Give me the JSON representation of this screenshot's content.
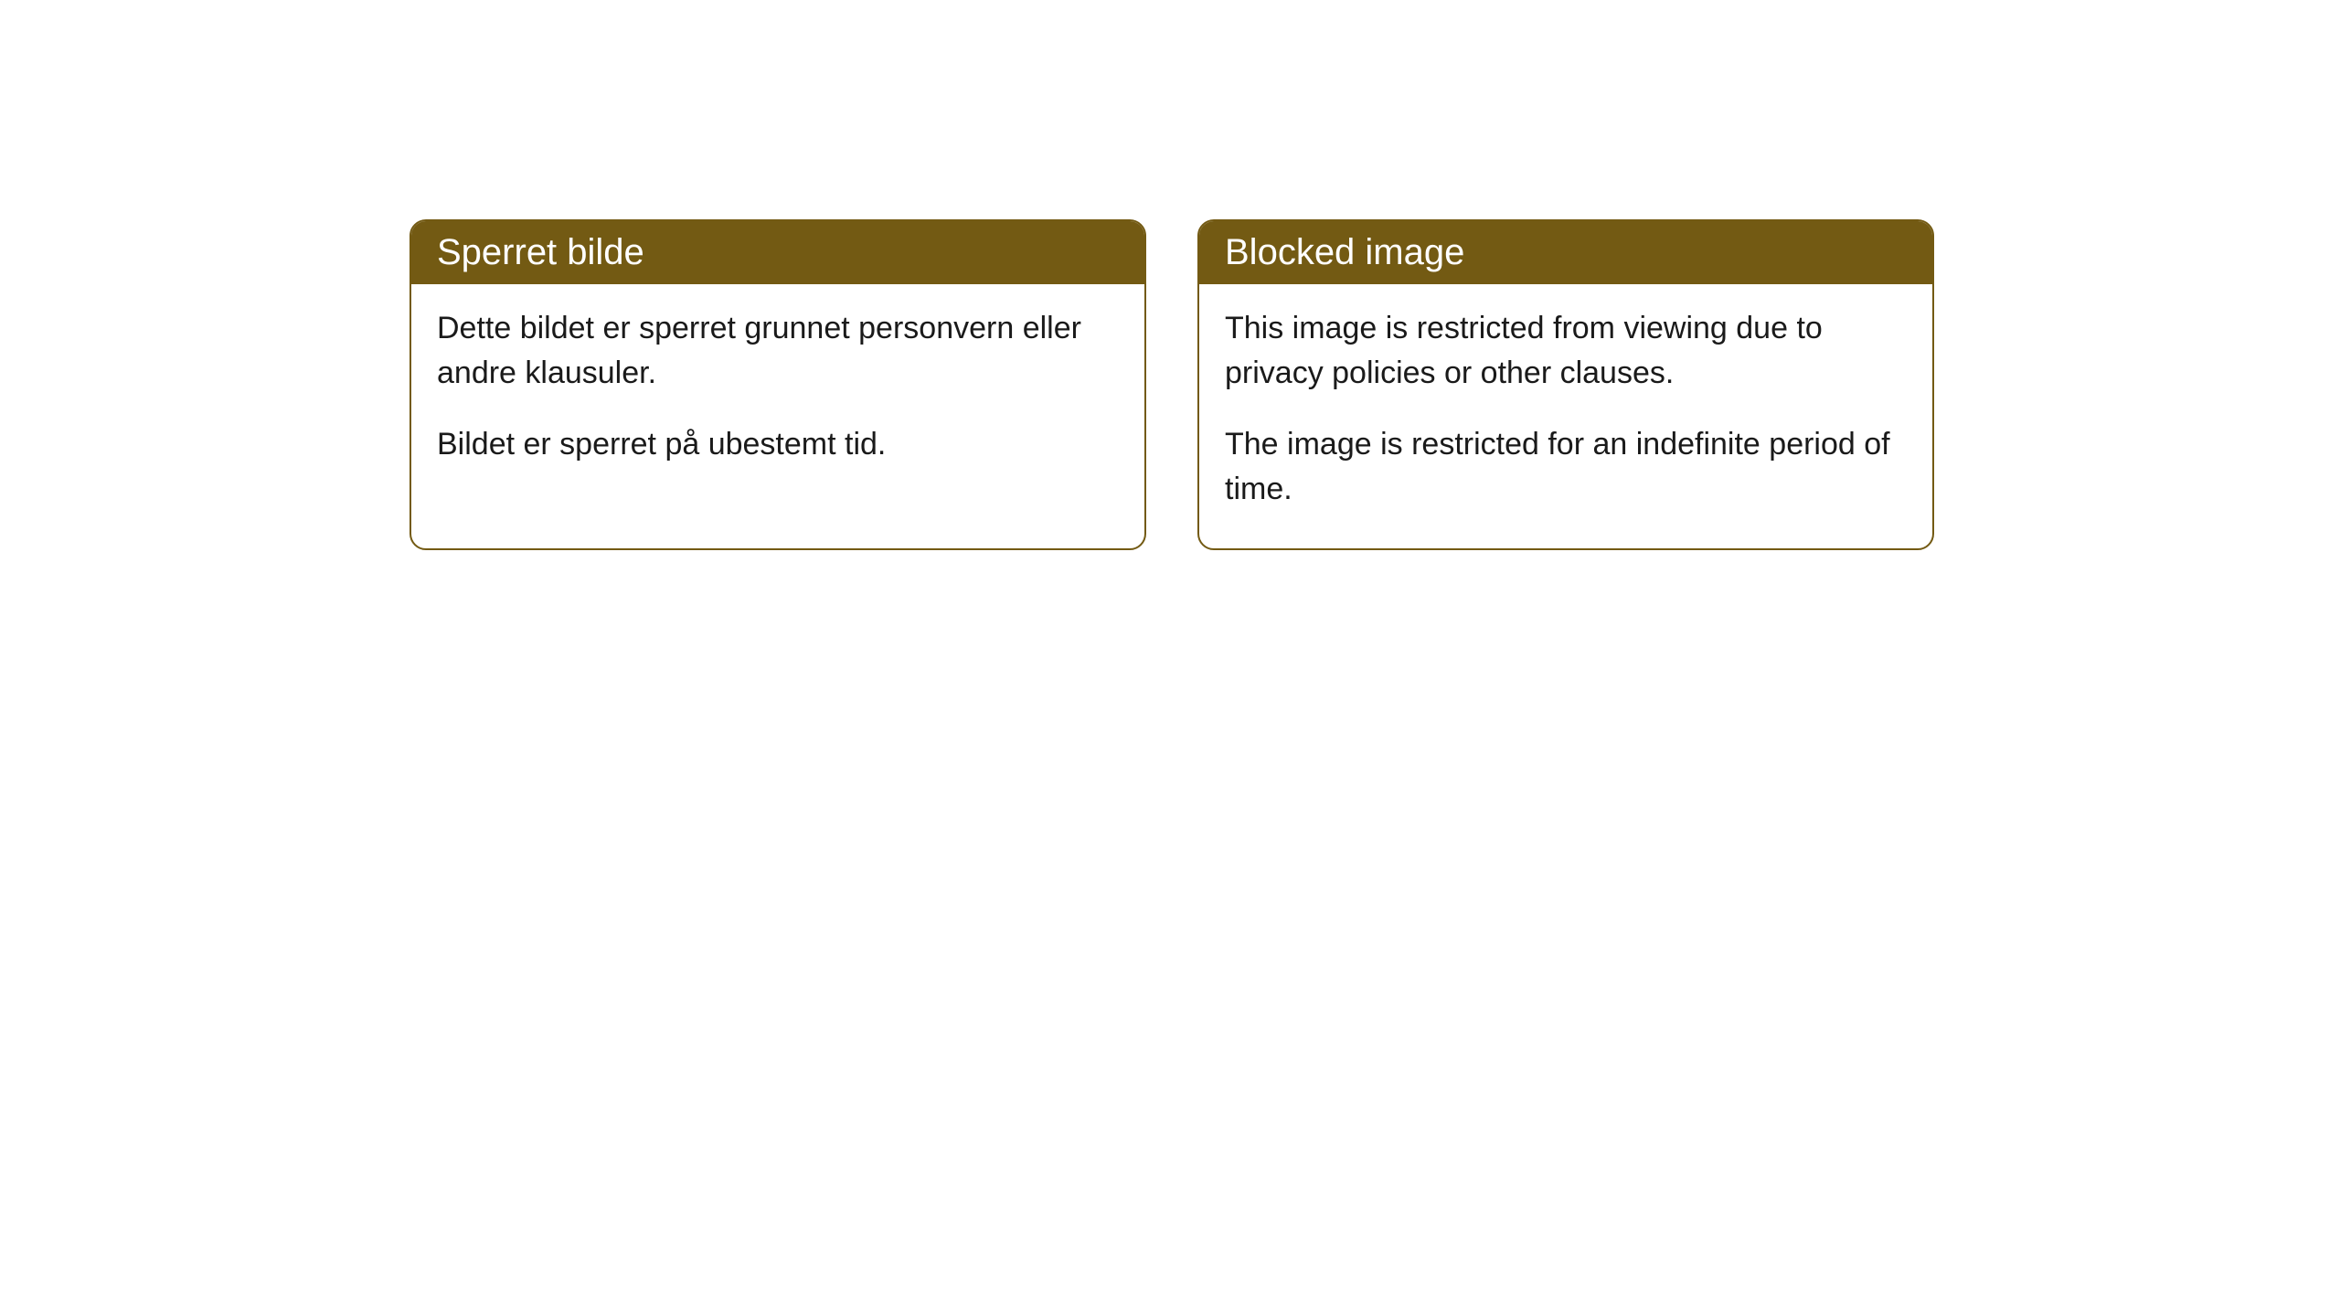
{
  "cards": [
    {
      "title": "Sperret bilde",
      "paragraph1": "Dette bildet er sperret grunnet personvern eller andre klausuler.",
      "paragraph2": "Bildet er sperret på ubestemt tid."
    },
    {
      "title": "Blocked image",
      "paragraph1": "This image is restricted from viewing due to privacy policies or other clauses.",
      "paragraph2": "The image is restricted for an indefinite period of time."
    }
  ],
  "styling": {
    "header_bg_color": "#735a13",
    "header_text_color": "#ffffff",
    "border_color": "#735a13",
    "body_text_color": "#1a1a1a",
    "card_bg_color": "#ffffff",
    "page_bg_color": "#ffffff",
    "border_radius": 18,
    "title_fontsize": 40,
    "body_fontsize": 34
  }
}
